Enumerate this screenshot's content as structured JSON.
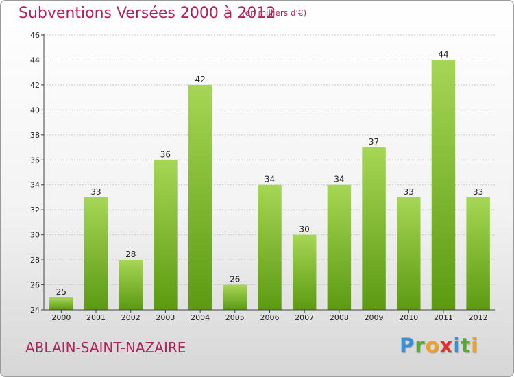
{
  "header": {
    "title": "Subventions Versées 2000 à 2012",
    "subtitle": "(en milliers d'€)"
  },
  "footer": {
    "commune": "ABLAIN-SAINT-NAZAIRE",
    "logo_letters": [
      {
        "char": "P",
        "color": "#3b8fd6"
      },
      {
        "char": "r",
        "color": "#5aa832"
      },
      {
        "char": "o",
        "color": "#f0a020"
      },
      {
        "char": "x",
        "color": "#e03030"
      },
      {
        "char": "i",
        "color": "#3b8fd6"
      },
      {
        "char": "t",
        "color": "#5aa832"
      },
      {
        "char": "i",
        "color": "#f0a020"
      }
    ]
  },
  "chart_data": {
    "type": "bar",
    "title": "Subventions Versées 2000 à 2012",
    "xlabel": "",
    "ylabel": "",
    "categories": [
      "2000",
      "2001",
      "2002",
      "2003",
      "2004",
      "2005",
      "2006",
      "2007",
      "2008",
      "2009",
      "2010",
      "2011",
      "2012"
    ],
    "values": [
      25,
      33,
      28,
      36,
      42,
      26,
      34,
      30,
      34,
      37,
      33,
      44,
      33
    ],
    "ylim": [
      24,
      46
    ],
    "yticks": [
      24,
      26,
      28,
      30,
      32,
      34,
      36,
      38,
      40,
      42,
      44,
      46
    ],
    "grid": true,
    "legend": "none",
    "colors": {
      "bar_top": "#a6d655",
      "bar_bottom": "#5c9a12",
      "grid": "#c8c8c8",
      "axis": "#444444"
    }
  }
}
